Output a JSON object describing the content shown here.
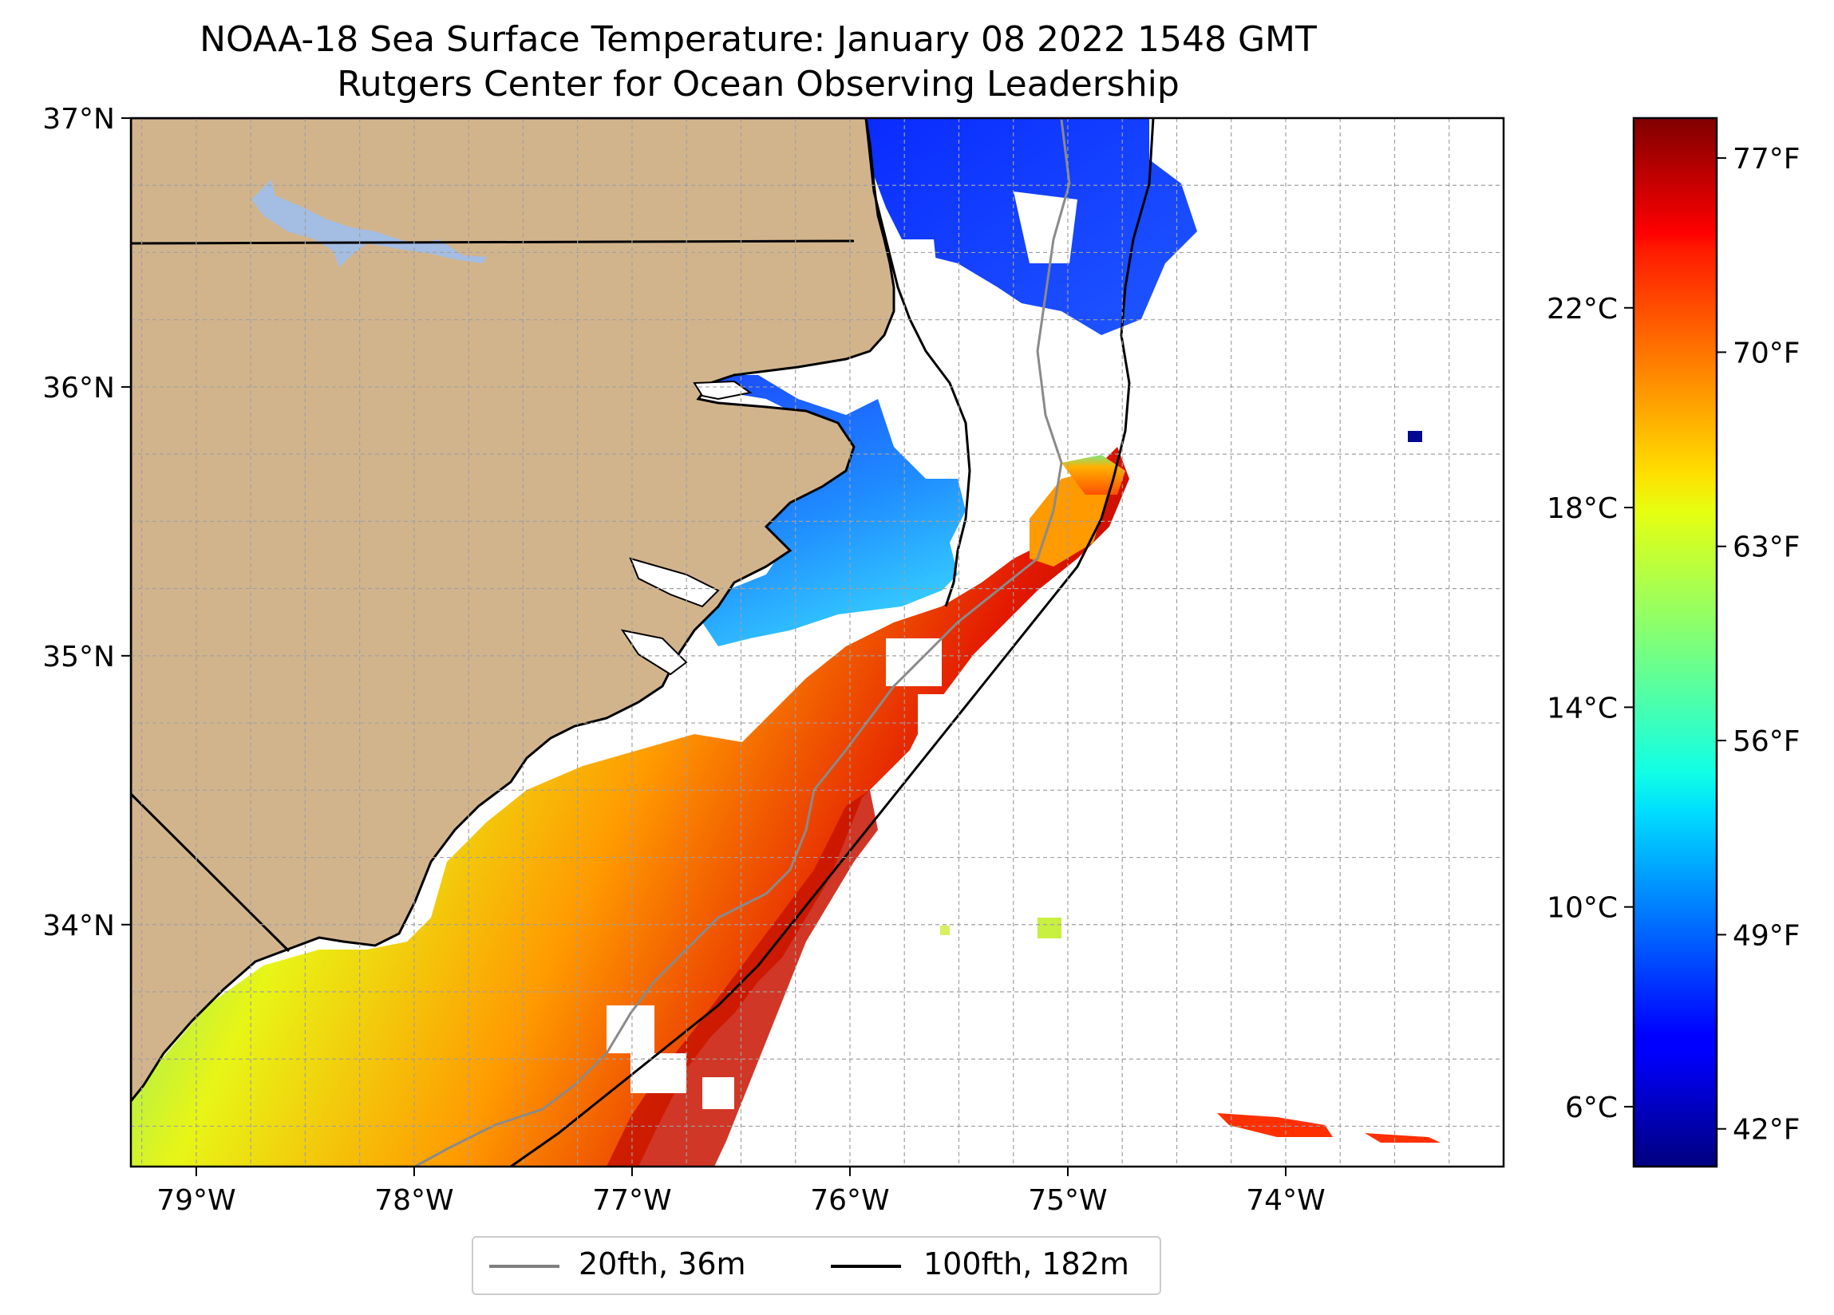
{
  "title": "NOAA-18 Sea Surface Temperature: January 08 2022 1548 GMT",
  "subtitle": "Rutgers Center for Ocean Observing Leadership",
  "map": {
    "lon_range": [
      -79.3,
      -73.0
    ],
    "lat_range": [
      33.1,
      37.0
    ],
    "lon_ticks": [
      {
        "value": -79,
        "label": "79°W"
      },
      {
        "value": -78,
        "label": "78°W"
      },
      {
        "value": -77,
        "label": "77°W"
      },
      {
        "value": -76,
        "label": "76°W"
      },
      {
        "value": -75,
        "label": "75°W"
      },
      {
        "value": -74,
        "label": "74°W"
      }
    ],
    "lat_ticks": [
      {
        "value": 37,
        "label": "37°N"
      },
      {
        "value": 36,
        "label": "36°N"
      },
      {
        "value": 35,
        "label": "35°N"
      },
      {
        "value": 34,
        "label": "34°N"
      }
    ],
    "grid": true,
    "land_color": "#d2b48c",
    "lake_color": "#a3bde3"
  },
  "colorbar": {
    "colormap": "jet",
    "celsius_range": [
      4.8,
      25.8
    ],
    "celsius_ticks": [
      {
        "value": 6,
        "label": "6°C"
      },
      {
        "value": 10,
        "label": "10°C"
      },
      {
        "value": 14,
        "label": "14°C"
      },
      {
        "value": 18,
        "label": "18°C"
      },
      {
        "value": 22,
        "label": "22°C"
      }
    ],
    "fahrenheit_ticks": [
      {
        "value": 42,
        "label": "42°F"
      },
      {
        "value": 49,
        "label": "49°F"
      },
      {
        "value": 56,
        "label": "56°F"
      },
      {
        "value": 63,
        "label": "63°F"
      },
      {
        "value": 70,
        "label": "70°F"
      },
      {
        "value": 77,
        "label": "77°F"
      }
    ]
  },
  "legend": {
    "items": [
      {
        "label": "20fth, 36m",
        "color": "#808080"
      },
      {
        "label": "100fth, 182m",
        "color": "#000000"
      }
    ]
  }
}
